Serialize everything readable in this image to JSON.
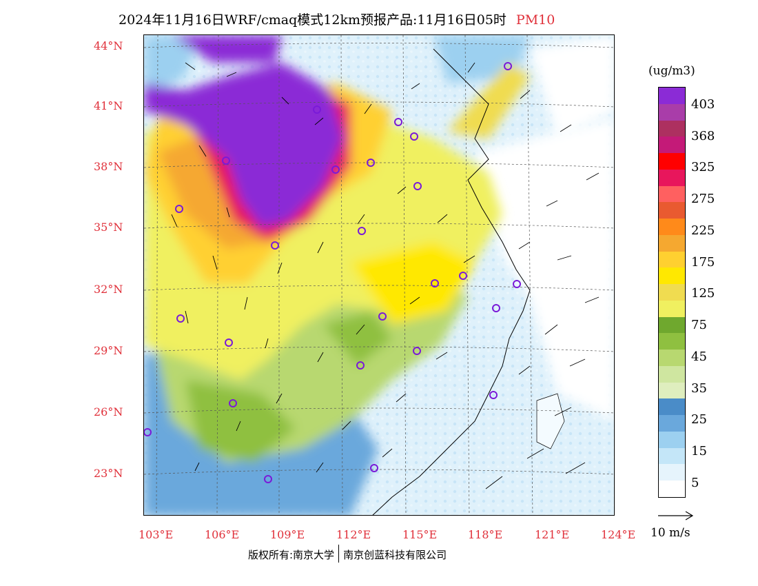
{
  "title": {
    "main": "2024年11月16日WRF/cmaq模式12km预报产品:11月16日05时",
    "species": "PM10"
  },
  "latitude_labels": [
    "44°N",
    "41°N",
    "38°N",
    "35°N",
    "32°N",
    "29°N",
    "26°N",
    "23°N"
  ],
  "longitude_labels": [
    "103°E",
    "106°E",
    "109°E",
    "112°E",
    "115°E",
    "118°E",
    "121°E",
    "124°E"
  ],
  "legend": {
    "unit": "(ug/m3)",
    "labels": [
      "403",
      "368",
      "325",
      "275",
      "225",
      "175",
      "125",
      "75",
      "45",
      "35",
      "25",
      "15",
      "5"
    ],
    "colors": [
      "#8b2bd6",
      "#a93da9",
      "#ad3060",
      "#c41a78",
      "#ff0000",
      "#e8165c",
      "#ff6060",
      "#e95a30",
      "#ff8a1a",
      "#f5a830",
      "#ffd030",
      "#ffe800",
      "#f0dc50",
      "#f0f060",
      "#6fa82e",
      "#8fc040",
      "#b8d870",
      "#cfe6a0",
      "#dfeebe",
      "#4a8cc8",
      "#6aa8dc",
      "#9cd0f0",
      "#c4e6f8",
      "#e6f4fc",
      "#ffffff"
    ]
  },
  "wind_reference": {
    "label": "10 m/s"
  },
  "footer": {
    "copyright": "版权所有:南京大学",
    "company": "南京创蓝科技有限公司"
  }
}
